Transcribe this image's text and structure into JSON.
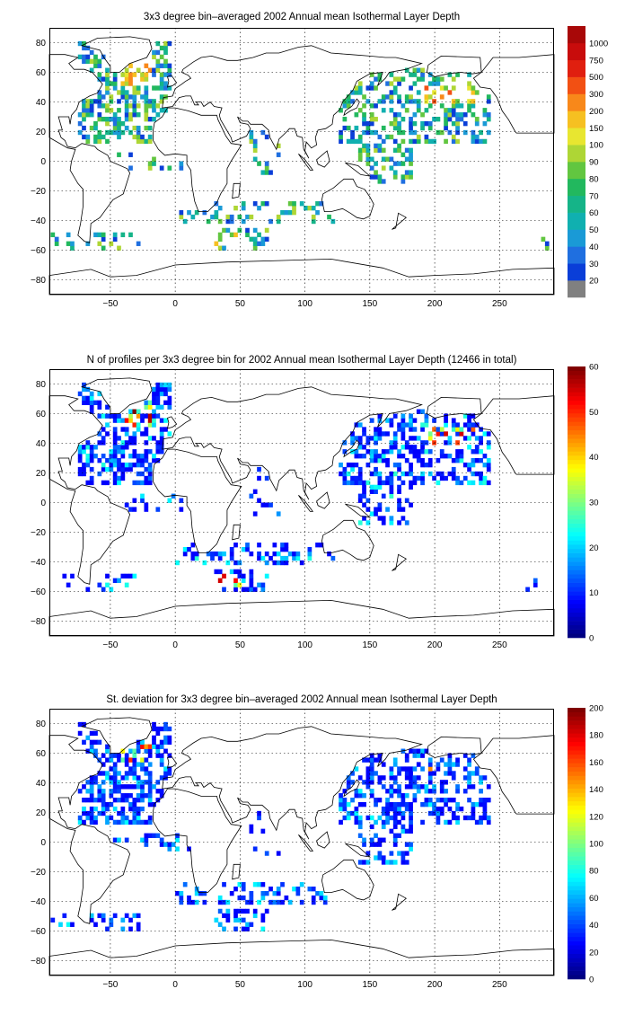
{
  "chart_data": [
    {
      "type": "heatmap",
      "title": "3x3 degree bin–averaged 2002 Annual mean Isothermal Layer Depth",
      "x_ticks": [
        "−50",
        "0",
        "50",
        "100",
        "150",
        "200",
        "250"
      ],
      "y_ticks": [
        "80",
        "60",
        "40",
        "20",
        "0",
        "−20",
        "−40",
        "−60",
        "−80"
      ],
      "xlim": [
        -97,
        292
      ],
      "ylim": [
        -90,
        90
      ],
      "grid": true,
      "colorbar": {
        "ticks": [
          "20",
          "30",
          "40",
          "50",
          "60",
          "70",
          "80",
          "90",
          "100",
          "150",
          "200",
          "300",
          "500",
          "750",
          "1000"
        ],
        "colors": [
          "#808080",
          "#0a3ed8",
          "#1f6fe0",
          "#1a9ad6",
          "#10b0b0",
          "#15b488",
          "#22b85e",
          "#62c640",
          "#aed635",
          "#e8e630",
          "#f6c021",
          "#f8881a",
          "#f25013",
          "#e01f0f",
          "#c80c0c",
          "#a80808"
        ]
      }
    },
    {
      "type": "heatmap",
      "title": "N of profiles per 3x3 degree bin for 2002 Annual mean Isothermal Layer Depth  (12466 in total)",
      "x_ticks": [
        "−50",
        "0",
        "50",
        "100",
        "150",
        "200",
        "250"
      ],
      "y_ticks": [
        "80",
        "60",
        "40",
        "20",
        "0",
        "−20",
        "−40",
        "−60",
        "−80"
      ],
      "xlim": [
        -97,
        292
      ],
      "ylim": [
        -90,
        90
      ],
      "grid": true,
      "colorbar": {
        "ticks": [
          "0",
          "10",
          "20",
          "30",
          "40",
          "50",
          "60"
        ],
        "range": [
          0,
          60
        ],
        "colormap": "jet"
      }
    },
    {
      "type": "heatmap",
      "title": "St. deviation for 3x3 degree bin–averaged 2002 Annual mean Isothermal Layer Depth",
      "x_ticks": [
        "−50",
        "0",
        "50",
        "100",
        "150",
        "200",
        "250"
      ],
      "y_ticks": [
        "80",
        "60",
        "40",
        "20",
        "0",
        "−20",
        "−40",
        "−60",
        "−80"
      ],
      "xlim": [
        -97,
        292
      ],
      "ylim": [
        -90,
        90
      ],
      "grid": true,
      "colorbar": {
        "ticks": [
          "0",
          "20",
          "40",
          "60",
          "80",
          "100",
          "120",
          "140",
          "160",
          "180",
          "200"
        ],
        "range": [
          0,
          200
        ],
        "colormap": "jet"
      }
    }
  ]
}
